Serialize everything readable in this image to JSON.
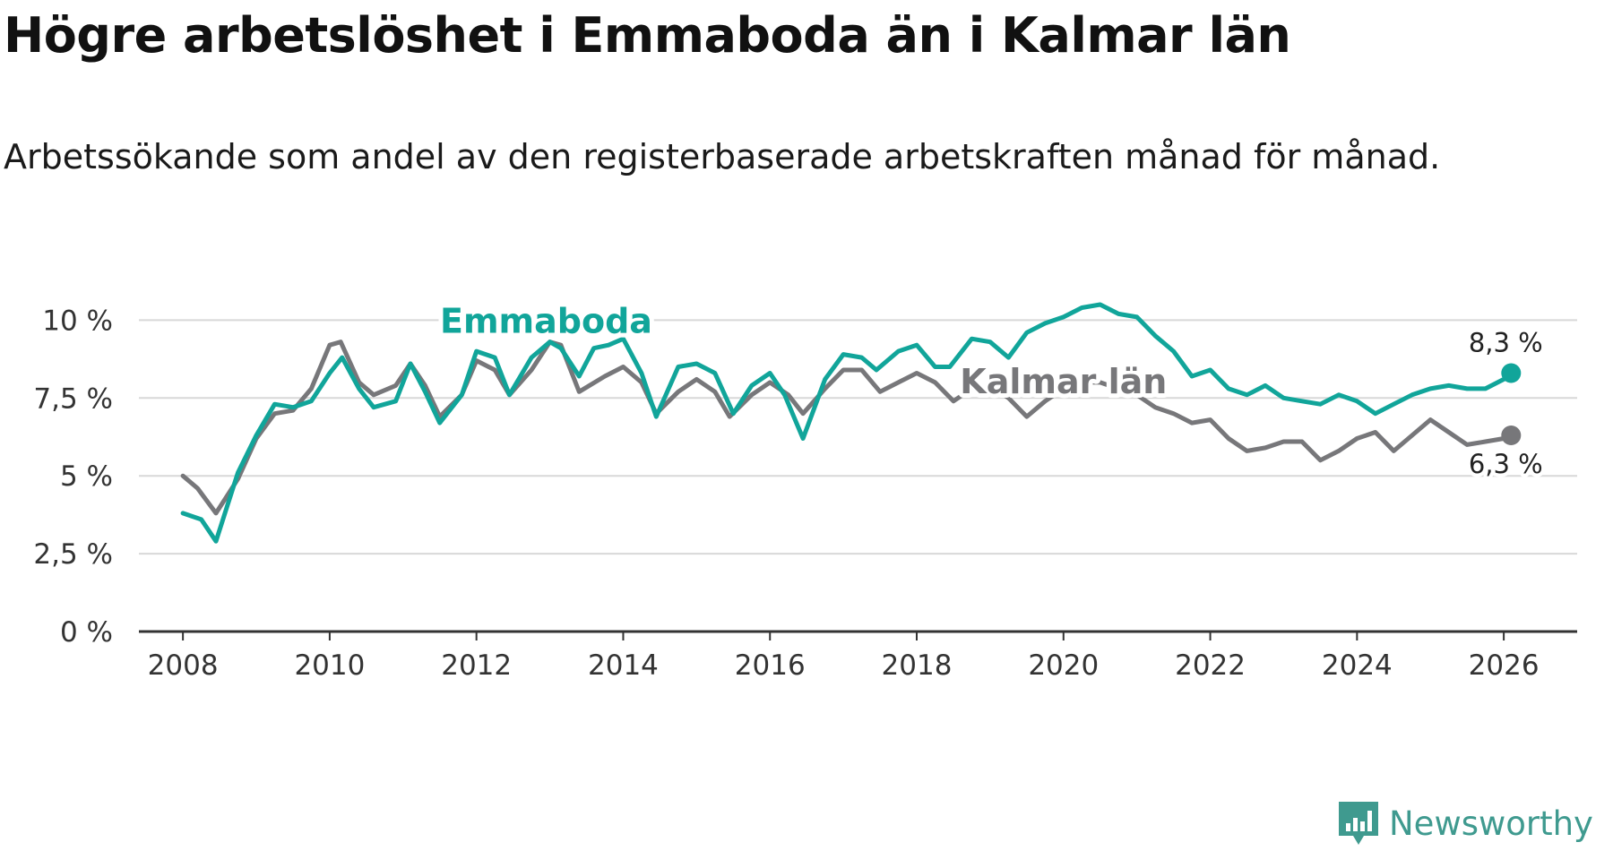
{
  "header": {
    "title": "Högre arbetslöshet i Emmaboda än i Kalmar län",
    "subtitle": "Arbetssökande som andel av den registerbaserade arbetskraften månad för månad."
  },
  "brand": {
    "name": "Newsworthy",
    "icon": "chart-bars-logo-icon",
    "color": "#3f9a8f"
  },
  "chart_data": {
    "type": "line",
    "title": "Högre arbetslöshet i Emmaboda än i Kalmar län",
    "subtitle": "Arbetssökande som andel av den registerbaserade arbetskraften månad för månad.",
    "xlabel": "",
    "ylabel": "",
    "xlim": [
      2007.4,
      2027.0
    ],
    "ylim": [
      0,
      10.5
    ],
    "x_ticks": [
      2008,
      2010,
      2012,
      2014,
      2016,
      2018,
      2020,
      2022,
      2024,
      2026
    ],
    "x_tick_labels": [
      "2008",
      "2010",
      "2012",
      "2014",
      "2016",
      "2018",
      "2020",
      "2022",
      "2024",
      "2026"
    ],
    "y_ticks": [
      0,
      2.5,
      5,
      7.5,
      10
    ],
    "y_tick_labels": [
      "0 %",
      "2,5 %",
      "5 %",
      "7,5 %",
      "10 %"
    ],
    "grid": true,
    "legend": "inline labels",
    "series": [
      {
        "name": "Emmaboda",
        "color": "#11a59a",
        "end_label": "8,3 %",
        "points": [
          [
            2008.0,
            3.8
          ],
          [
            2008.25,
            3.6
          ],
          [
            2008.45,
            2.9
          ],
          [
            2008.75,
            5.1
          ],
          [
            2009.0,
            6.3
          ],
          [
            2009.25,
            7.3
          ],
          [
            2009.5,
            7.2
          ],
          [
            2009.75,
            7.4
          ],
          [
            2010.0,
            8.3
          ],
          [
            2010.17,
            8.8
          ],
          [
            2010.4,
            7.8
          ],
          [
            2010.6,
            7.2
          ],
          [
            2010.9,
            7.4
          ],
          [
            2011.1,
            8.6
          ],
          [
            2011.3,
            7.7
          ],
          [
            2011.5,
            6.7
          ],
          [
            2011.8,
            7.6
          ],
          [
            2012.0,
            9.0
          ],
          [
            2012.25,
            8.8
          ],
          [
            2012.45,
            7.6
          ],
          [
            2012.75,
            8.8
          ],
          [
            2013.0,
            9.3
          ],
          [
            2013.15,
            9.1
          ],
          [
            2013.4,
            8.2
          ],
          [
            2013.6,
            9.1
          ],
          [
            2013.8,
            9.2
          ],
          [
            2014.0,
            9.4
          ],
          [
            2014.25,
            8.3
          ],
          [
            2014.45,
            6.9
          ],
          [
            2014.75,
            8.5
          ],
          [
            2015.0,
            8.6
          ],
          [
            2015.25,
            8.3
          ],
          [
            2015.5,
            7.0
          ],
          [
            2015.75,
            7.9
          ],
          [
            2016.0,
            8.3
          ],
          [
            2016.2,
            7.6
          ],
          [
            2016.45,
            6.2
          ],
          [
            2016.75,
            8.1
          ],
          [
            2017.0,
            8.9
          ],
          [
            2017.25,
            8.8
          ],
          [
            2017.45,
            8.4
          ],
          [
            2017.75,
            9.0
          ],
          [
            2018.0,
            9.2
          ],
          [
            2018.25,
            8.5
          ],
          [
            2018.45,
            8.5
          ],
          [
            2018.75,
            9.4
          ],
          [
            2019.0,
            9.3
          ],
          [
            2019.25,
            8.8
          ],
          [
            2019.5,
            9.6
          ],
          [
            2019.75,
            9.9
          ],
          [
            2020.0,
            10.1
          ],
          [
            2020.25,
            10.4
          ],
          [
            2020.5,
            10.5
          ],
          [
            2020.75,
            10.2
          ],
          [
            2021.0,
            10.1
          ],
          [
            2021.25,
            9.5
          ],
          [
            2021.5,
            9.0
          ],
          [
            2021.75,
            8.2
          ],
          [
            2022.0,
            8.4
          ],
          [
            2022.25,
            7.8
          ],
          [
            2022.5,
            7.6
          ],
          [
            2022.75,
            7.9
          ],
          [
            2023.0,
            7.5
          ],
          [
            2023.25,
            7.4
          ],
          [
            2023.5,
            7.3
          ],
          [
            2023.75,
            7.6
          ],
          [
            2024.0,
            7.4
          ],
          [
            2024.25,
            7.0
          ],
          [
            2024.5,
            7.3
          ],
          [
            2024.75,
            7.6
          ],
          [
            2025.0,
            7.8
          ],
          [
            2025.25,
            7.9
          ],
          [
            2025.5,
            7.8
          ],
          [
            2025.75,
            7.8
          ],
          [
            2026.0,
            8.1
          ],
          [
            2026.1,
            8.3
          ]
        ]
      },
      {
        "name": "Kalmar län",
        "color": "#77777a",
        "end_label": "6,3 %",
        "points": [
          [
            2008.0,
            5.0
          ],
          [
            2008.2,
            4.6
          ],
          [
            2008.45,
            3.8
          ],
          [
            2008.75,
            4.9
          ],
          [
            2009.0,
            6.2
          ],
          [
            2009.25,
            7.0
          ],
          [
            2009.5,
            7.1
          ],
          [
            2009.75,
            7.8
          ],
          [
            2010.0,
            9.2
          ],
          [
            2010.15,
            9.3
          ],
          [
            2010.4,
            8.0
          ],
          [
            2010.6,
            7.6
          ],
          [
            2010.9,
            7.9
          ],
          [
            2011.1,
            8.6
          ],
          [
            2011.3,
            7.9
          ],
          [
            2011.5,
            6.9
          ],
          [
            2011.8,
            7.6
          ],
          [
            2012.0,
            8.7
          ],
          [
            2012.25,
            8.4
          ],
          [
            2012.45,
            7.6
          ],
          [
            2012.75,
            8.4
          ],
          [
            2013.0,
            9.3
          ],
          [
            2013.15,
            9.2
          ],
          [
            2013.4,
            7.7
          ],
          [
            2013.75,
            8.2
          ],
          [
            2014.0,
            8.5
          ],
          [
            2014.25,
            8.0
          ],
          [
            2014.45,
            7.0
          ],
          [
            2014.75,
            7.7
          ],
          [
            2015.0,
            8.1
          ],
          [
            2015.25,
            7.7
          ],
          [
            2015.45,
            6.9
          ],
          [
            2015.75,
            7.6
          ],
          [
            2016.0,
            8.0
          ],
          [
            2016.25,
            7.6
          ],
          [
            2016.45,
            7.0
          ],
          [
            2016.75,
            7.8
          ],
          [
            2017.0,
            8.4
          ],
          [
            2017.25,
            8.4
          ],
          [
            2017.5,
            7.7
          ],
          [
            2017.75,
            8.0
          ],
          [
            2018.0,
            8.3
          ],
          [
            2018.25,
            8.0
          ],
          [
            2018.5,
            7.4
          ],
          [
            2018.75,
            7.8
          ],
          [
            2019.0,
            7.9
          ],
          [
            2019.25,
            7.5
          ],
          [
            2019.5,
            6.9
          ],
          [
            2019.75,
            7.4
          ],
          [
            2020.0,
            7.8
          ],
          [
            2020.25,
            8.0
          ],
          [
            2020.5,
            8.0
          ],
          [
            2020.75,
            7.8
          ],
          [
            2021.0,
            7.6
          ],
          [
            2021.25,
            7.2
          ],
          [
            2021.5,
            7.0
          ],
          [
            2021.75,
            6.7
          ],
          [
            2022.0,
            6.8
          ],
          [
            2022.25,
            6.2
          ],
          [
            2022.5,
            5.8
          ],
          [
            2022.75,
            5.9
          ],
          [
            2023.0,
            6.1
          ],
          [
            2023.25,
            6.1
          ],
          [
            2023.5,
            5.5
          ],
          [
            2023.75,
            5.8
          ],
          [
            2024.0,
            6.2
          ],
          [
            2024.25,
            6.4
          ],
          [
            2024.5,
            5.8
          ],
          [
            2024.75,
            6.3
          ],
          [
            2025.0,
            6.8
          ],
          [
            2025.25,
            6.4
          ],
          [
            2025.5,
            6.0
          ],
          [
            2025.75,
            6.1
          ],
          [
            2026.0,
            6.2
          ],
          [
            2026.1,
            6.3
          ]
        ]
      }
    ]
  }
}
